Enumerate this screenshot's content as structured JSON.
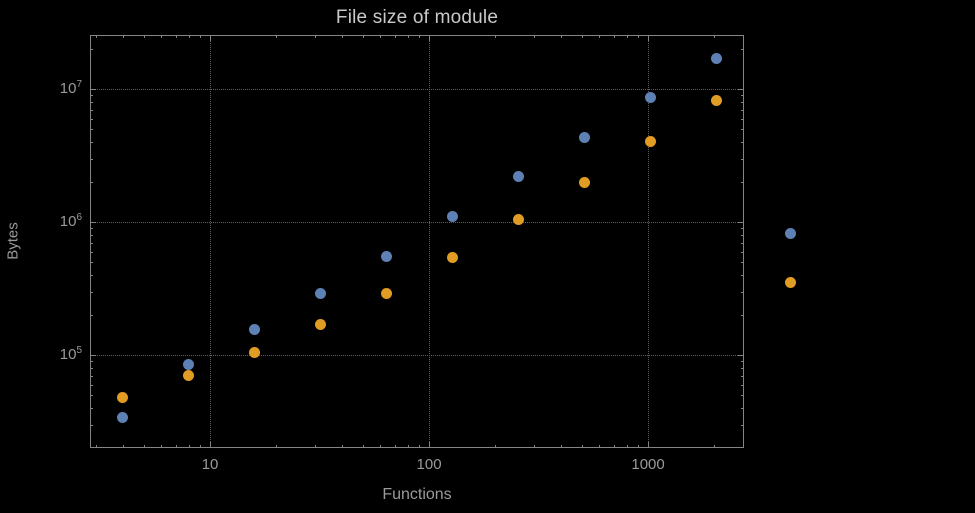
{
  "chart_data": {
    "type": "scatter",
    "title": "File size of module",
    "xlabel": "Functions",
    "ylabel": "Bytes",
    "x_scale": "log",
    "y_scale": "log",
    "xlim": [
      2.83,
      2742
    ],
    "ylim": [
      20000,
      25500000
    ],
    "grid": "dotted, at powers of 10",
    "legend": "none",
    "x_gridlines": [
      10,
      100,
      1000
    ],
    "y_gridlines": [
      100000,
      1000000,
      10000000
    ],
    "x_ticks": [
      {
        "value": 10,
        "label": "10"
      },
      {
        "value": 100,
        "label": "100"
      },
      {
        "value": 1000,
        "label": "1000"
      }
    ],
    "y_ticks": [
      {
        "value": 100000,
        "base": "10",
        "exp": "5"
      },
      {
        "value": 1000000,
        "base": "10",
        "exp": "6"
      },
      {
        "value": 10000000,
        "base": "10",
        "exp": "7"
      }
    ],
    "series": [
      {
        "name": "series-1",
        "color": "#5e81b5",
        "points": [
          [
            4,
            34000
          ],
          [
            8,
            85000
          ],
          [
            16,
            155000
          ],
          [
            32,
            290000
          ],
          [
            64,
            550000
          ],
          [
            128,
            1100000
          ],
          [
            256,
            2200000
          ],
          [
            512,
            4300000
          ],
          [
            1024,
            8600000
          ],
          [
            2048,
            17000000
          ],
          [
            4450,
            820000
          ]
        ]
      },
      {
        "name": "series-2",
        "color": "#e19c24",
        "points": [
          [
            4,
            48000
          ],
          [
            8,
            70000
          ],
          [
            16,
            105000
          ],
          [
            32,
            170000
          ],
          [
            64,
            290000
          ],
          [
            128,
            540000
          ],
          [
            256,
            1050000
          ],
          [
            512,
            2000000
          ],
          [
            1024,
            4000000
          ],
          [
            2048,
            8200000
          ],
          [
            4450,
            350000
          ]
        ]
      }
    ]
  }
}
